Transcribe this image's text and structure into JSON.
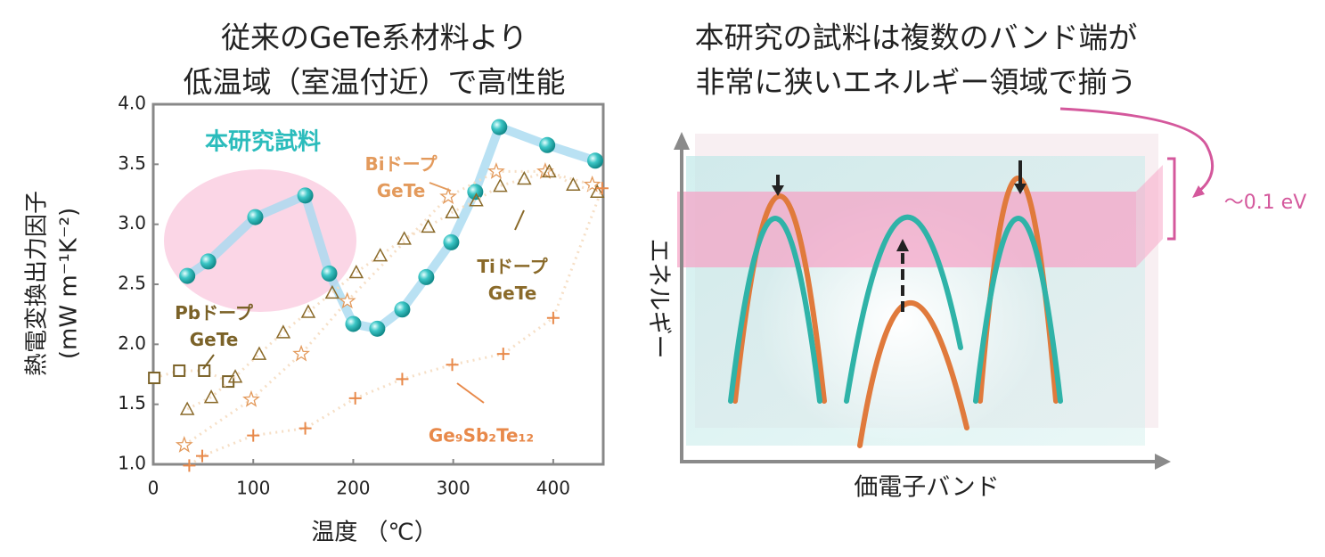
{
  "chart_data": {
    "type": "scatter",
    "title": [
      "従来のGeTe系材料より",
      "低温域（室温付近）で高性能"
    ],
    "x_label": "温度 （℃）",
    "y_label": [
      "熱電変換出力因子",
      "(mW m⁻¹K⁻²)"
    ],
    "xlim": [
      0,
      450
    ],
    "xticks": [
      0,
      100,
      200,
      300,
      400
    ],
    "ylim": [
      1.0,
      4.0
    ],
    "yticks": [
      {
        "value": 1.0,
        "label": "1.0"
      },
      1.5,
      {
        "value": 2.0,
        "label": "2.0"
      },
      2.5,
      {
        "value": 3.0,
        "label": "3.0"
      },
      3.5,
      {
        "value": 4.0,
        "label": "4.0"
      }
    ],
    "series": [
      {
        "name": "本研究試料",
        "color": "#2bbcbc",
        "marker": "sphere",
        "x": [
          34,
          55,
          102,
          152,
          176,
          200,
          224,
          249,
          273,
          298,
          322,
          346,
          394,
          442
        ],
        "values": [
          2.57,
          2.69,
          3.06,
          3.24,
          2.59,
          2.17,
          2.13,
          2.29,
          2.56,
          2.85,
          3.27,
          3.81,
          3.66,
          3.53
        ]
      },
      {
        "name": "Pbドープ\nGeTe",
        "color": "#7b6228",
        "marker": "square",
        "x": [
          1,
          26,
          51,
          75
        ],
        "values": [
          1.72,
          1.78,
          1.78,
          1.69
        ]
      },
      {
        "name": "Biドープ\nGeTe",
        "color": "#e39a5c",
        "marker": "star",
        "x": [
          31,
          98,
          148,
          194,
          295,
          343,
          392,
          439
        ],
        "values": [
          1.16,
          1.54,
          1.92,
          2.36,
          3.23,
          3.44,
          3.44,
          3.33
        ]
      },
      {
        "name": "Tiドープ\nGeTe",
        "color": "#8a6a2a",
        "marker": "triangle",
        "x": [
          34,
          58,
          82,
          106,
          130,
          155,
          179,
          203,
          227,
          251,
          275,
          299,
          323,
          347,
          371,
          396,
          420,
          444
        ],
        "values": [
          1.46,
          1.56,
          1.73,
          1.92,
          2.1,
          2.27,
          2.43,
          2.6,
          2.74,
          2.88,
          2.98,
          3.1,
          3.2,
          3.32,
          3.38,
          3.44,
          3.33,
          3.27
        ]
      },
      {
        "name": "Ge₉Sb₂Te₁₂",
        "color": "#e8894a",
        "marker": "plus",
        "x": [
          36,
          49,
          100,
          152,
          202,
          249,
          299,
          350,
          400,
          449
        ],
        "values": [
          0.99,
          1.07,
          1.24,
          1.3,
          1.55,
          1.71,
          1.83,
          1.92,
          2.22,
          3.3
        ]
      }
    ]
  },
  "diagram": {
    "title": [
      "本研究の試料は複数のバンド端が",
      "非常に狭いエネルギー領域で揃う"
    ],
    "y_label": "エネルギー",
    "x_label": "価電子バンド",
    "annotation": "～0.1 eV"
  }
}
